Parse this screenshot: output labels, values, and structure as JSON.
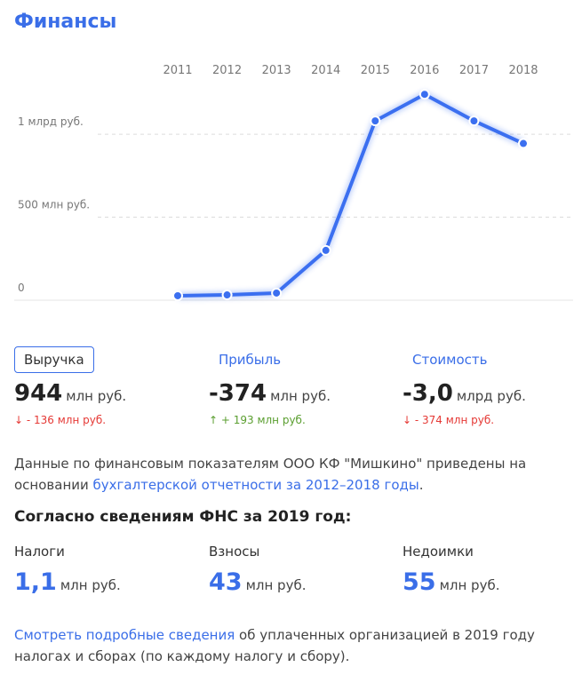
{
  "header": {
    "title": "Финансы"
  },
  "chart_data": {
    "type": "line",
    "categories": [
      "2011",
      "2012",
      "2013",
      "2014",
      "2015",
      "2016",
      "2017",
      "2018"
    ],
    "values": [
      27,
      32,
      43,
      300,
      1080,
      1240,
      1080,
      944
    ],
    "color": "#3b6ff0",
    "ylim": [
      0,
      1300
    ],
    "yticks": [
      0,
      {
        "value": 500,
        "label": "500 млн руб."
      },
      {
        "value": 1000,
        "label": "1 млрд руб."
      }
    ],
    "grid": true
  },
  "metrics": [
    {
      "label": "Выручка",
      "value": "944",
      "unit": "млн руб.",
      "change": "↓ - 136 млн руб.",
      "color": "#e53935"
    },
    {
      "label": "Прибыль",
      "value": "-374",
      "unit": "млн руб.",
      "change": "↑ + 193 млн руб.",
      "color": "#5a9e2f"
    },
    {
      "label": "Стоимость",
      "value": "-3,0",
      "unit": "млрд руб.",
      "change": "↓ - 374 млн руб.",
      "color": "#e53935"
    }
  ],
  "note": {
    "text": "Данные по финансовым показателям ООО КФ \"Мишкино\" приведены на основании ",
    "link": "бухгалтерской отчетности за 2012–2018 годы",
    "end": "."
  },
  "fns": {
    "title": "Согласно сведениям ФНС за 2019 год:",
    "items": [
      {
        "label": "Налоги",
        "value": "1,1",
        "unit": "млн руб."
      },
      {
        "label": "Взносы",
        "value": "43",
        "unit": "млн руб."
      },
      {
        "label": "Недоимки",
        "value": "55",
        "unit": "млн руб."
      }
    ]
  },
  "footer": {
    "link": "Смотреть подробные сведения",
    "text": " об уплаченных организацией в 2019 году налогах и сборах (по каждому налогу и сбору)."
  }
}
